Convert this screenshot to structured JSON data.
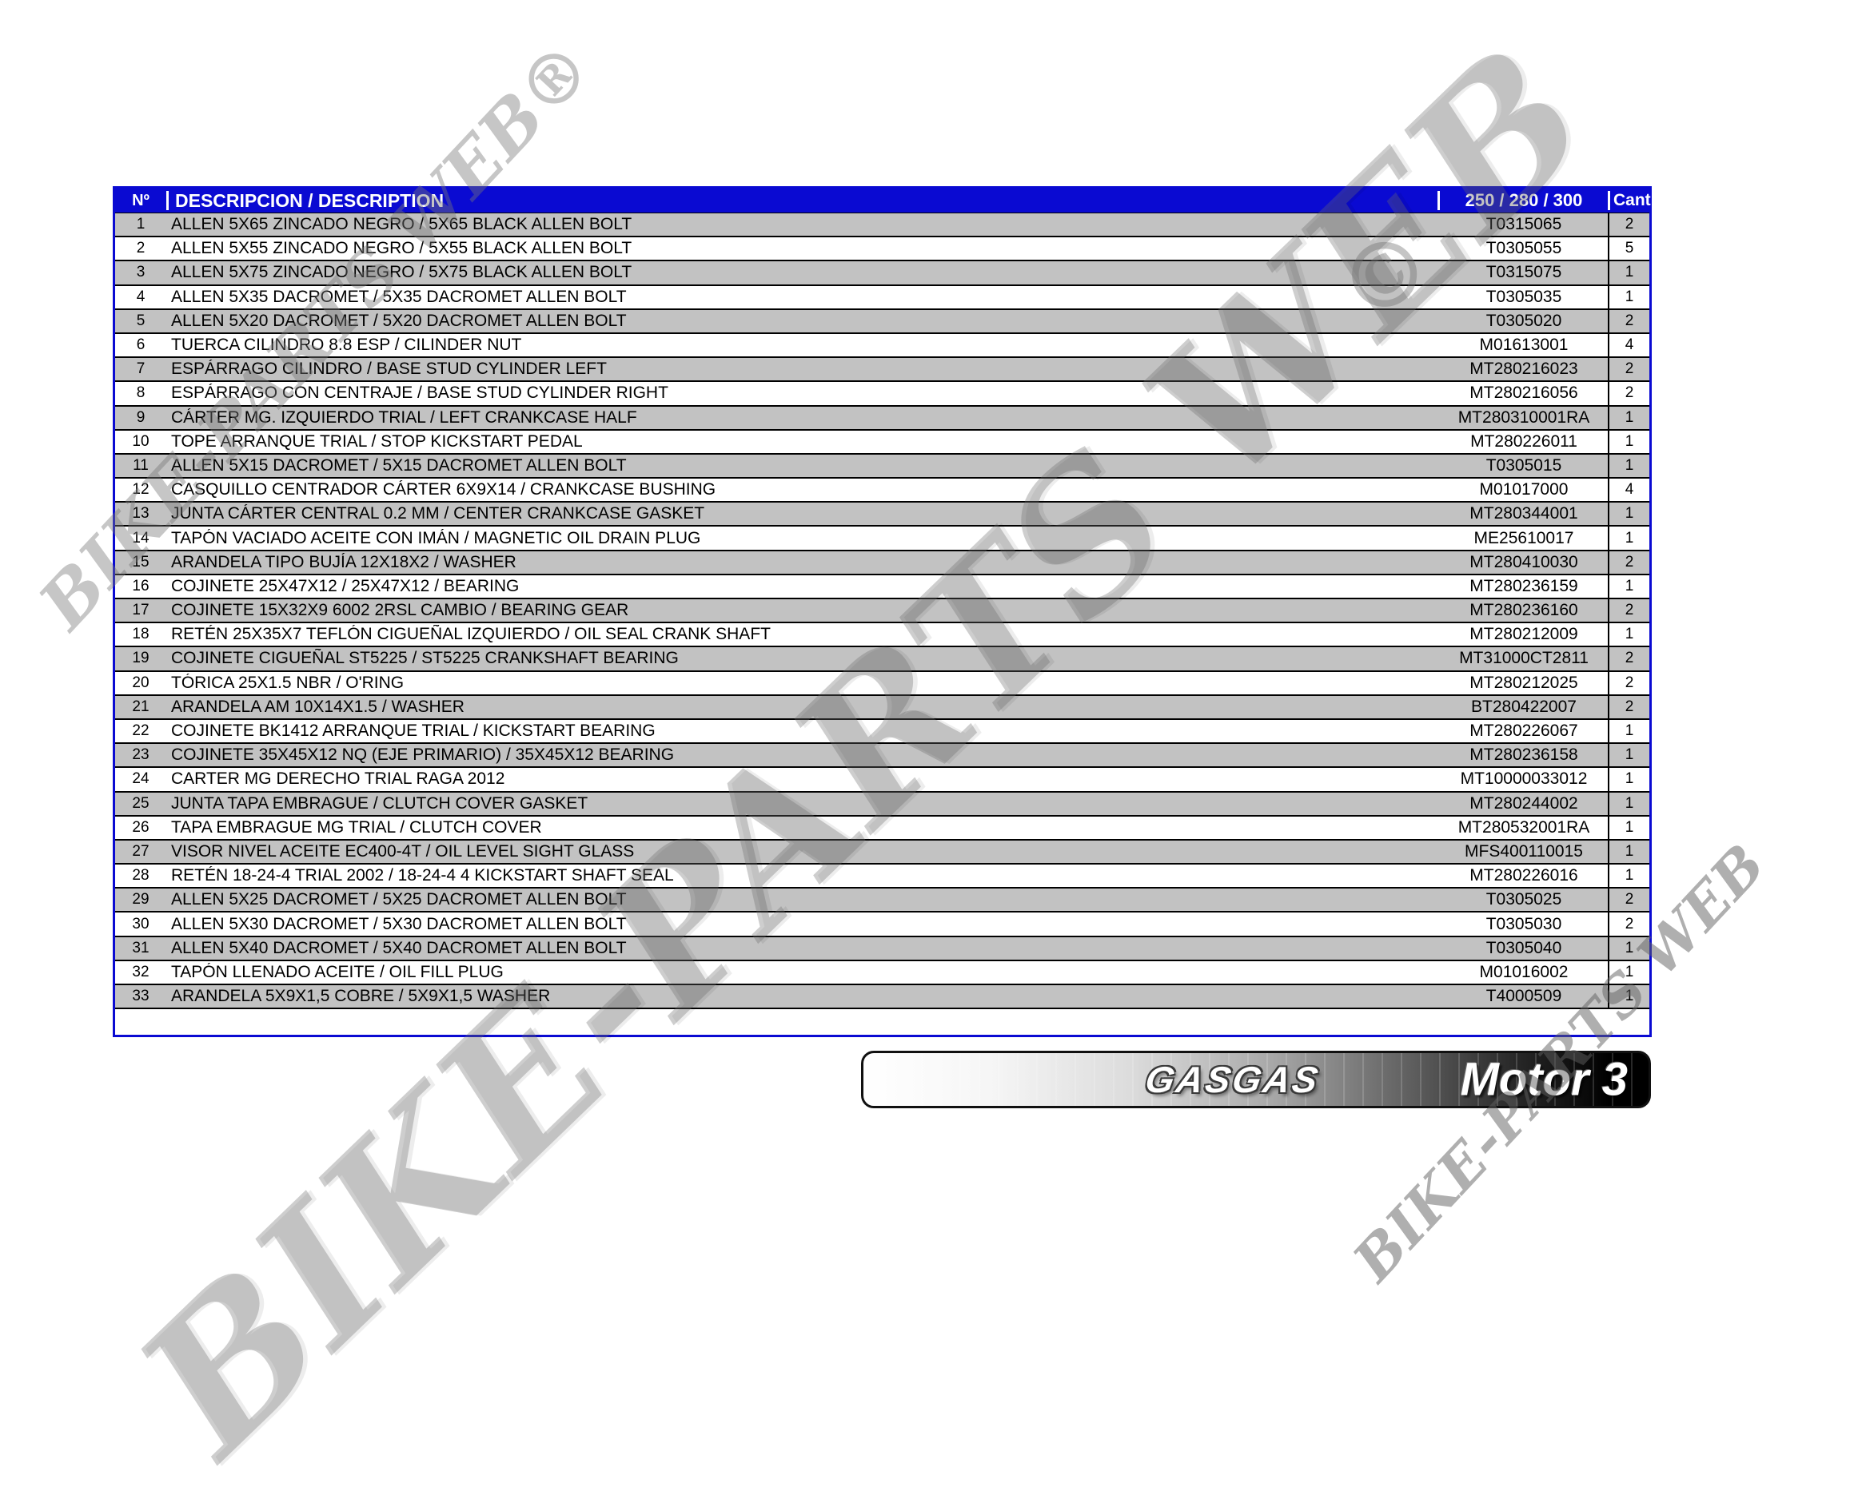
{
  "page": {
    "background": "#ffffff"
  },
  "table": {
    "header_bg": "#0a0ad2",
    "alt_row_bg": "#c2c2c2",
    "headers": {
      "num": "Nº",
      "description": "DESCRIPCION / DESCRIPTION",
      "part": "250 / 280 / 300",
      "qty": "Cant."
    },
    "rows": [
      {
        "num": "1",
        "description": "ALLEN 5X65 ZINCADO NEGRO / 5X65 BLACK ALLEN BOLT",
        "part": "T0315065",
        "qty": "2"
      },
      {
        "num": "2",
        "description": "ALLEN 5X55 ZINCADO NEGRO / 5X55 BLACK ALLEN BOLT",
        "part": "T0305055",
        "qty": "5"
      },
      {
        "num": "3",
        "description": "ALLEN 5X75 ZINCADO NEGRO / 5X75 BLACK ALLEN BOLT",
        "part": "T0315075",
        "qty": "1"
      },
      {
        "num": "4",
        "description": "ALLEN 5X35 DACROMET / 5X35 DACROMET ALLEN BOLT",
        "part": "T0305035",
        "qty": "1"
      },
      {
        "num": "5",
        "description": "ALLEN 5X20 DACROMET / 5X20 DACROMET ALLEN BOLT",
        "part": "T0305020",
        "qty": "2"
      },
      {
        "num": "6",
        "description": "TUERCA CILINDRO 8.8 ESP / CILINDER NUT",
        "part": "M01613001",
        "qty": "4"
      },
      {
        "num": "7",
        "description": "ESPÁRRAGO CILINDRO / BASE STUD CYLINDER LEFT",
        "part": "MT280216023",
        "qty": "2"
      },
      {
        "num": "8",
        "description": "ESPÁRRAGO CON CENTRAJE / BASE STUD CYLINDER RIGHT",
        "part": "MT280216056",
        "qty": "2"
      },
      {
        "num": "9",
        "description": "CÁRTER MG. IZQUIERDO TRIAL / LEFT CRANKCASE HALF",
        "part": "MT280310001RA",
        "qty": "1"
      },
      {
        "num": "10",
        "description": "TOPE ARRANQUE TRIAL / STOP KICKSTART PEDAL",
        "part": "MT280226011",
        "qty": "1"
      },
      {
        "num": "11",
        "description": "ALLEN 5X15 DACROMET / 5X15 DACROMET ALLEN BOLT",
        "part": "T0305015",
        "qty": "1"
      },
      {
        "num": "12",
        "description": "CASQUILLO CENTRADOR CÁRTER 6X9X14 / CRANKCASE BUSHING",
        "part": "M01017000",
        "qty": "4"
      },
      {
        "num": "13",
        "description": "JUNTA CÁRTER CENTRAL 0.2 MM / CENTER CRANKCASE GASKET",
        "part": "MT280344001",
        "qty": "1"
      },
      {
        "num": "14",
        "description": "TAPÓN VACIADO ACEITE CON IMÁN / MAGNETIC OIL DRAIN PLUG",
        "part": "ME25610017",
        "qty": "1"
      },
      {
        "num": "15",
        "description": "ARANDELA TIPO BUJÍA 12X18X2 / WASHER",
        "part": "MT280410030",
        "qty": "2"
      },
      {
        "num": "16",
        "description": "COJINETE 25X47X12 / 25X47X12 / BEARING",
        "part": "MT280236159",
        "qty": "1"
      },
      {
        "num": "17",
        "description": "COJINETE 15X32X9 6002 2RSL CAMBIO  / BEARING GEAR",
        "part": "MT280236160",
        "qty": "2"
      },
      {
        "num": "18",
        "description": "RETÉN 25X35X7 TEFLÓN CIGUEÑAL IZQUIERDO / OIL SEAL CRANK SHAFT",
        "part": "MT280212009",
        "qty": "1"
      },
      {
        "num": "19",
        "description": "COJINETE CIGUEÑAL ST5225 / ST5225 CRANKSHAFT BEARING",
        "part": "MT31000CT2811",
        "qty": "2"
      },
      {
        "num": "20",
        "description": "TÓRICA 25X1.5 NBR / O'RING",
        "part": "MT280212025",
        "qty": "2"
      },
      {
        "num": "21",
        "description": "ARANDELA AM 10X14X1.5 / WASHER",
        "part": "BT280422007",
        "qty": "2"
      },
      {
        "num": "22",
        "description": "COJINETE BK1412 ARRANQUE TRIAL / KICKSTART BEARING",
        "part": "MT280226067",
        "qty": "1"
      },
      {
        "num": "23",
        "description": "COJINETE 35X45X12 NQ (EJE PRIMARIO) / 35X45X12 BEARING",
        "part": "MT280236158",
        "qty": "1"
      },
      {
        "num": "24",
        "description": "CARTER MG DERECHO TRIAL RAGA 2012",
        "part": "MT10000033012",
        "qty": "1"
      },
      {
        "num": "25",
        "description": "JUNTA TAPA EMBRAGUE / CLUTCH COVER GASKET",
        "part": "MT280244002",
        "qty": "1"
      },
      {
        "num": "26",
        "description": "TAPA EMBRAGUE MG TRIAL / CLUTCH COVER",
        "part": "MT280532001RA",
        "qty": "1"
      },
      {
        "num": "27",
        "description": "VISOR NIVEL ACEITE EC400-4T / OIL LEVEL SIGHT GLASS",
        "part": "MFS400110015",
        "qty": "1"
      },
      {
        "num": "28",
        "description": "RETÉN 18-24-4 TRIAL 2002 / 18-24-4 4 KICKSTART SHAFT SEAL",
        "part": "MT280226016",
        "qty": "1"
      },
      {
        "num": "29",
        "description": "ALLEN 5X25 DACROMET / 5X25 DACROMET ALLEN BOLT",
        "part": "T0305025",
        "qty": "2"
      },
      {
        "num": "30",
        "description": "ALLEN 5X30 DACROMET / 5X30 DACROMET ALLEN BOLT",
        "part": "T0305030",
        "qty": "2"
      },
      {
        "num": "31",
        "description": "ALLEN 5X40 DACROMET / 5X40 DACROMET ALLEN BOLT",
        "part": "T0305040",
        "qty": "1"
      },
      {
        "num": "32",
        "description": "TAPÓN LLENADO ACEITE / OIL FILL PLUG",
        "part": "M01016002",
        "qty": "1"
      },
      {
        "num": "33",
        "description": "ARANDELA 5X9X1,5 COBRE / 5X9X1,5 WASHER",
        "part": "T4000509",
        "qty": "1"
      }
    ]
  },
  "banner": {
    "brand": "GASGAS",
    "title": "Motor 3"
  },
  "watermarks": {
    "main": "BIKE-PARTS WEB",
    "main_symbol": "©",
    "top_left": "BIKE-PARTS WEB®",
    "bottom_right": "BIKE-PARTS WEB"
  }
}
